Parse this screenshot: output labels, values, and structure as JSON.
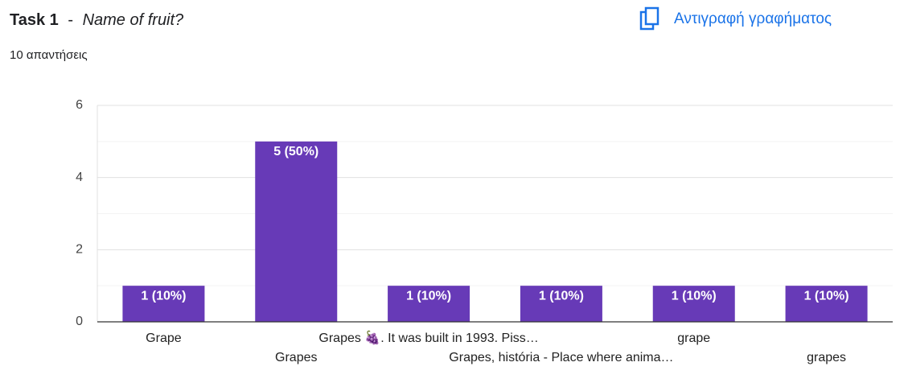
{
  "header": {
    "title": "Task 1",
    "separator": "-",
    "question": "Name of fruit?",
    "responses": "10 απαντήσεις",
    "copy_button": "Αντιγραφή γραφήματος"
  },
  "chart_data": {
    "type": "bar",
    "categories": [
      "Grape",
      "Grapes",
      "Grapes 🍇. It was built in 1993. Piss…",
      "Grapes, história - Place where anima…",
      "grape",
      "grapes"
    ],
    "values": [
      1,
      5,
      1,
      1,
      1,
      1
    ],
    "value_labels": [
      "1 (10%)",
      "5 (50%)",
      "1 (10%)",
      "1 (10%)",
      "1 (10%)",
      "1 (10%)"
    ],
    "color": "#673ab7",
    "ylim": [
      0,
      6
    ],
    "yticks": [
      0,
      2,
      4,
      6
    ],
    "minor_yticks": [
      1,
      3,
      5
    ],
    "grid": true
  }
}
